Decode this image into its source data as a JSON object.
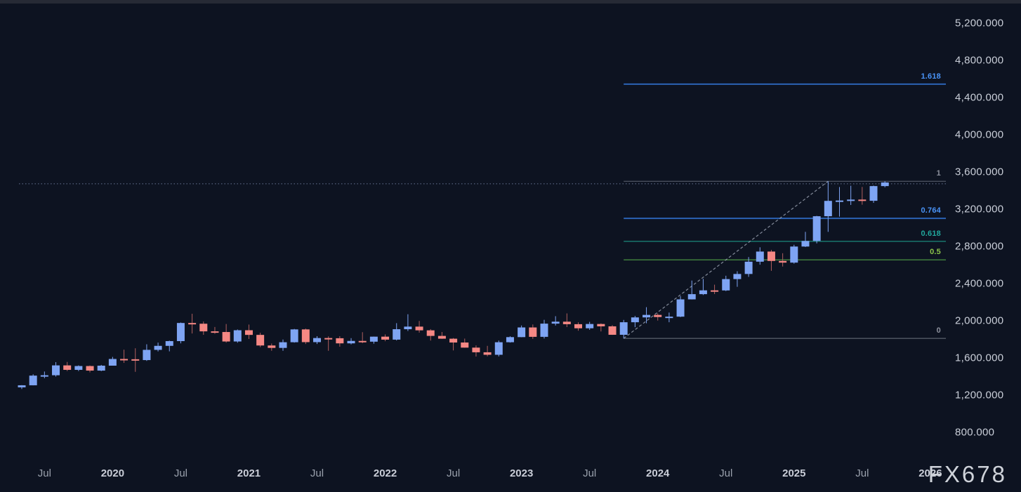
{
  "watermark": "FX678",
  "colors": {
    "background": "#0d1321",
    "topbar": "#262a35",
    "candle_up": "#7ea4f3",
    "candle_up_wick": "#7ea4f3",
    "candle_down": "#f58884",
    "candle_down_wick": "#b05f5e",
    "price_label": "#cacfd9",
    "month_label": "#9aa1ad",
    "year_label": "#c9cdd7",
    "dotted_price_line": "#4e5a74",
    "trendline": "#99a1b0",
    "watermark": "#ced2d9"
  },
  "chart_data": {
    "type": "candlestick",
    "timeframe": "monthly",
    "ylim": [
      600,
      5400
    ],
    "grid": false,
    "legend_position": "none",
    "price_axis_labels": [
      {
        "text": "5,200.000",
        "value": 5200
      },
      {
        "text": "4,800.000",
        "value": 4800
      },
      {
        "text": "4,400.000",
        "value": 4400
      },
      {
        "text": "4,000.000",
        "value": 4000
      },
      {
        "text": "3,600.000",
        "value": 3600
      },
      {
        "text": "3,200.000",
        "value": 3200
      },
      {
        "text": "2,800.000",
        "value": 2800
      },
      {
        "text": "2,400.000",
        "value": 2400
      },
      {
        "text": "2,000.000",
        "value": 2000
      },
      {
        "text": "1,600.000",
        "value": 1600
      },
      {
        "text": "1,200.000",
        "value": 1200
      },
      {
        "text": "800.000",
        "value": 800
      }
    ],
    "time_axis_labels": [
      {
        "text": "Jul",
        "index": 2,
        "year": false
      },
      {
        "text": "2020",
        "index": 8,
        "year": true
      },
      {
        "text": "Jul",
        "index": 14,
        "year": false
      },
      {
        "text": "2021",
        "index": 20,
        "year": true
      },
      {
        "text": "Jul",
        "index": 26,
        "year": false
      },
      {
        "text": "2022",
        "index": 32,
        "year": true
      },
      {
        "text": "Jul",
        "index": 38,
        "year": false
      },
      {
        "text": "2023",
        "index": 44,
        "year": true
      },
      {
        "text": "Jul",
        "index": 50,
        "year": false
      },
      {
        "text": "2024",
        "index": 56,
        "year": true
      },
      {
        "text": "Jul",
        "index": 62,
        "year": false
      },
      {
        "text": "2025",
        "index": 68,
        "year": true
      },
      {
        "text": "Jul",
        "index": 74,
        "year": false
      },
      {
        "text": "2026",
        "index": 80,
        "year": true
      }
    ],
    "fibonacci": {
      "start_index": 53,
      "levels": [
        {
          "label": "1.618",
          "price": 4544,
          "label_color": "#4a94f8",
          "line_color": "#2b63b5",
          "line_width": 2
        },
        {
          "label": "1",
          "price": 3500,
          "label_color": "#8d919d",
          "line_color": "#5f6573",
          "line_width": 1
        },
        {
          "label": "0.764",
          "price": 3101,
          "label_color": "#4a94f8",
          "line_color": "#2b63b5",
          "line_width": 2
        },
        {
          "label": "0.618",
          "price": 2854,
          "label_color": "#21a79c",
          "line_color": "#19766e",
          "line_width": 1.5
        },
        {
          "label": "0.5",
          "price": 2655,
          "label_color": "#8bc34a",
          "line_color": "#3f7d3d",
          "line_width": 1.5
        },
        {
          "label": "0",
          "price": 1810,
          "label_color": "#8d919d",
          "line_color": "#6e7481",
          "line_width": 1
        }
      ]
    },
    "dotted_price_line": {
      "price": 3473
    },
    "trendline": {
      "from_index": 53,
      "from_price": 1810,
      "to_index": 71,
      "to_price": 3500
    },
    "candles": [
      [
        "2019-05",
        1284,
        1308,
        1266,
        1306
      ],
      [
        "2019-06",
        1306,
        1424,
        1305,
        1410
      ],
      [
        "2019-07",
        1410,
        1454,
        1382,
        1414
      ],
      [
        "2019-08",
        1414,
        1555,
        1400,
        1520
      ],
      [
        "2019-09",
        1520,
        1557,
        1459,
        1472
      ],
      [
        "2019-10",
        1472,
        1520,
        1459,
        1513
      ],
      [
        "2019-11",
        1513,
        1519,
        1445,
        1464
      ],
      [
        "2019-12",
        1464,
        1525,
        1458,
        1517
      ],
      [
        "2020-01",
        1517,
        1611,
        1517,
        1589
      ],
      [
        "2020-02",
        1589,
        1689,
        1547,
        1586
      ],
      [
        "2020-03",
        1586,
        1704,
        1451,
        1577
      ],
      [
        "2020-04",
        1577,
        1747,
        1568,
        1687
      ],
      [
        "2020-05",
        1687,
        1765,
        1670,
        1730
      ],
      [
        "2020-06",
        1730,
        1786,
        1671,
        1781
      ],
      [
        "2020-07",
        1781,
        1981,
        1757,
        1976
      ],
      [
        "2020-08",
        1976,
        2075,
        1863,
        1968
      ],
      [
        "2020-09",
        1968,
        1992,
        1849,
        1886
      ],
      [
        "2020-10",
        1886,
        1933,
        1860,
        1879
      ],
      [
        "2020-11",
        1879,
        1965,
        1765,
        1777
      ],
      [
        "2020-12",
        1777,
        1906,
        1764,
        1898
      ],
      [
        "2021-01",
        1898,
        1959,
        1804,
        1848
      ],
      [
        "2021-02",
        1848,
        1871,
        1717,
        1734
      ],
      [
        "2021-03",
        1734,
        1755,
        1677,
        1708
      ],
      [
        "2021-04",
        1708,
        1798,
        1677,
        1769
      ],
      [
        "2021-05",
        1769,
        1912,
        1765,
        1907
      ],
      [
        "2021-06",
        1907,
        1916,
        1750,
        1770
      ],
      [
        "2021-07",
        1770,
        1834,
        1750,
        1814
      ],
      [
        "2021-08",
        1814,
        1832,
        1677,
        1812
      ],
      [
        "2021-09",
        1812,
        1834,
        1721,
        1757
      ],
      [
        "2021-10",
        1757,
        1813,
        1746,
        1783
      ],
      [
        "2021-11",
        1783,
        1877,
        1759,
        1775
      ],
      [
        "2021-12",
        1775,
        1830,
        1753,
        1829
      ],
      [
        "2022-01",
        1829,
        1853,
        1780,
        1797
      ],
      [
        "2022-02",
        1797,
        1974,
        1788,
        1909
      ],
      [
        "2022-03",
        1909,
        2070,
        1890,
        1937
      ],
      [
        "2022-04",
        1937,
        1998,
        1872,
        1897
      ],
      [
        "2022-05",
        1897,
        1910,
        1787,
        1837
      ],
      [
        "2022-06",
        1837,
        1879,
        1805,
        1807
      ],
      [
        "2022-07",
        1807,
        1814,
        1681,
        1766
      ],
      [
        "2022-08",
        1766,
        1808,
        1710,
        1711
      ],
      [
        "2022-09",
        1711,
        1735,
        1615,
        1661
      ],
      [
        "2022-10",
        1661,
        1730,
        1617,
        1634
      ],
      [
        "2022-11",
        1634,
        1787,
        1616,
        1769
      ],
      [
        "2022-12",
        1769,
        1833,
        1765,
        1824
      ],
      [
        "2023-01",
        1824,
        1949,
        1823,
        1928
      ],
      [
        "2023-02",
        1928,
        1960,
        1805,
        1827
      ],
      [
        "2023-03",
        1827,
        2010,
        1809,
        1969
      ],
      [
        "2023-04",
        1969,
        2049,
        1949,
        1990
      ],
      [
        "2023-05",
        1990,
        2079,
        1932,
        1963
      ],
      [
        "2023-06",
        1963,
        1983,
        1893,
        1919
      ],
      [
        "2023-07",
        1919,
        1988,
        1902,
        1965
      ],
      [
        "2023-08",
        1965,
        1972,
        1885,
        1940
      ],
      [
        "2023-09",
        1940,
        1953,
        1848,
        1849
      ],
      [
        "2023-10",
        1849,
        2009,
        1810,
        1984
      ],
      [
        "2023-11",
        1984,
        2052,
        1931,
        2036
      ],
      [
        "2023-12",
        2036,
        2146,
        1973,
        2063
      ],
      [
        "2024-01",
        2063,
        2079,
        2002,
        2040
      ],
      [
        "2024-02",
        2040,
        2088,
        1984,
        2044
      ],
      [
        "2024-03",
        2044,
        2265,
        2039,
        2230
      ],
      [
        "2024-04",
        2230,
        2432,
        2229,
        2286
      ],
      [
        "2024-05",
        2286,
        2450,
        2277,
        2327
      ],
      [
        "2024-06",
        2327,
        2388,
        2287,
        2326
      ],
      [
        "2024-07",
        2326,
        2484,
        2319,
        2448
      ],
      [
        "2024-08",
        2448,
        2532,
        2365,
        2503
      ],
      [
        "2024-09",
        2503,
        2685,
        2472,
        2635
      ],
      [
        "2024-10",
        2635,
        2790,
        2603,
        2744
      ],
      [
        "2024-11",
        2744,
        2762,
        2537,
        2643
      ],
      [
        "2024-12",
        2643,
        2726,
        2583,
        2625
      ],
      [
        "2025-01",
        2625,
        2817,
        2614,
        2798
      ],
      [
        "2025-02",
        2798,
        2956,
        2793,
        2858
      ],
      [
        "2025-03",
        2858,
        3128,
        2832,
        3124
      ],
      [
        "2025-04",
        3124,
        3500,
        2956,
        3289
      ],
      [
        "2025-05",
        3289,
        3438,
        3120,
        3293
      ],
      [
        "2025-06",
        3293,
        3452,
        3245,
        3303
      ],
      [
        "2025-07",
        3303,
        3439,
        3248,
        3290
      ],
      [
        "2025-08",
        3290,
        3453,
        3268,
        3448
      ],
      [
        "2025-09",
        3448,
        3500,
        3435,
        3487
      ]
    ]
  }
}
